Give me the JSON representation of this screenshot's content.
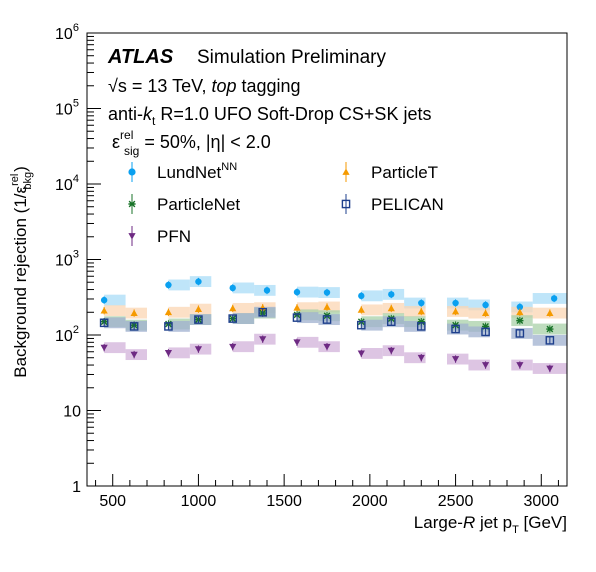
{
  "chart_data": {
    "type": "scatter",
    "title": "",
    "atlas_label": "ATLAS",
    "atlas_sublabel": "Simulation Preliminary",
    "annotations": [
      {
        "main": "√s = 13 TeV, ",
        "italic": "top",
        "tail": " tagging"
      },
      {
        "main": "anti-",
        "italic": "k",
        "sub": "t",
        "tail": " R=1.0 UFO Soft-Drop CS+SK jets"
      },
      {
        "main": "ε",
        "sup": "rel",
        "sub": "sig",
        "tail": " = 50%, |η| < 2.0"
      }
    ],
    "xlabel": {
      "pre": "Large-",
      "italic": "R",
      "mid": " jet p",
      "sub": "T",
      "post": " [GeV]"
    },
    "ylabel": {
      "pre": "Background rejection (1/ε",
      "sup": "rel",
      "sub": "bkg",
      "post": ")"
    },
    "x_scale": "linear",
    "y_scale": "log",
    "xlim": [
      350,
      3150
    ],
    "ylim": [
      1,
      1000000
    ],
    "x_ticks": [
      500,
      1000,
      1500,
      2000,
      2500,
      3000
    ],
    "x_tick_labels": [
      "500",
      "1000",
      "1500",
      "2000",
      "2500",
      "3000"
    ],
    "y_ticks": [
      1,
      10,
      100,
      1000,
      10000,
      100000,
      1000000
    ],
    "y_tick_labels": [
      "1",
      "10",
      "10^2",
      "10^3",
      "10^4",
      "10^5",
      "10^6"
    ],
    "grid": false,
    "legend_placement": "top, two columns",
    "bin_edges": [
      350,
      450,
      575,
      700,
      825,
      950,
      1075,
      1200,
      1325,
      1450,
      1575,
      1700,
      1825,
      1950,
      2075,
      2200,
      2325,
      2450,
      2575,
      2700,
      2825,
      2950,
      3150
    ],
    "series": [
      {
        "name": "LundNet",
        "name_sup": "NN",
        "marker": "circle",
        "color": "#0aa0f0",
        "band_color": "#a9dcf7",
        "x": [
          450,
          825,
          1000,
          1200,
          1400,
          1575,
          1750,
          1950,
          2125,
          2300,
          2500,
          2675,
          2875,
          3075
        ],
        "y": [
          290,
          460,
          510,
          420,
          390,
          370,
          365,
          330,
          345,
          265,
          265,
          250,
          235,
          305
        ]
      },
      {
        "name": "ParticleT",
        "marker": "triangle-up",
        "color": "#f59a00",
        "band_color": "#fbd6b3",
        "x": [
          450,
          625,
          825,
          1000,
          1200,
          1375,
          1575,
          1750,
          1950,
          2125,
          2300,
          2500,
          2675,
          2875,
          3050
        ],
        "y": [
          210,
          195,
          200,
          220,
          225,
          230,
          230,
          235,
          215,
          225,
          205,
          205,
          195,
          200,
          195
        ]
      },
      {
        "name": "ParticleNet",
        "marker": "x-star",
        "color": "#187328",
        "band_color": "#a8d0a8",
        "x": [
          450,
          625,
          825,
          1000,
          1200,
          1375,
          1575,
          1750,
          1950,
          2125,
          2300,
          2500,
          2675,
          2875,
          3050
        ],
        "y": [
          150,
          135,
          140,
          160,
          165,
          195,
          185,
          180,
          150,
          165,
          150,
          135,
          130,
          155,
          120
        ]
      },
      {
        "name": "PELICAN",
        "marker": "open-square",
        "color": "#1e3f8c",
        "band_color": "#9fb0cf",
        "x": [
          450,
          625,
          825,
          1000,
          1200,
          1375,
          1575,
          1750,
          1950,
          2125,
          2300,
          2500,
          2675,
          2875,
          3050
        ],
        "y": [
          145,
          130,
          130,
          160,
          165,
          200,
          170,
          160,
          135,
          150,
          130,
          120,
          110,
          105,
          85
        ]
      },
      {
        "name": "PFN",
        "marker": "triangle-down",
        "color": "#6e2a83",
        "band_color": "#d2b2da",
        "x": [
          450,
          625,
          825,
          1000,
          1200,
          1375,
          1575,
          1750,
          1950,
          2125,
          2300,
          2500,
          2675,
          2875,
          3050
        ],
        "y": [
          68,
          55,
          58,
          65,
          70,
          88,
          80,
          70,
          57,
          62,
          50,
          48,
          40,
          40,
          36
        ]
      }
    ]
  }
}
